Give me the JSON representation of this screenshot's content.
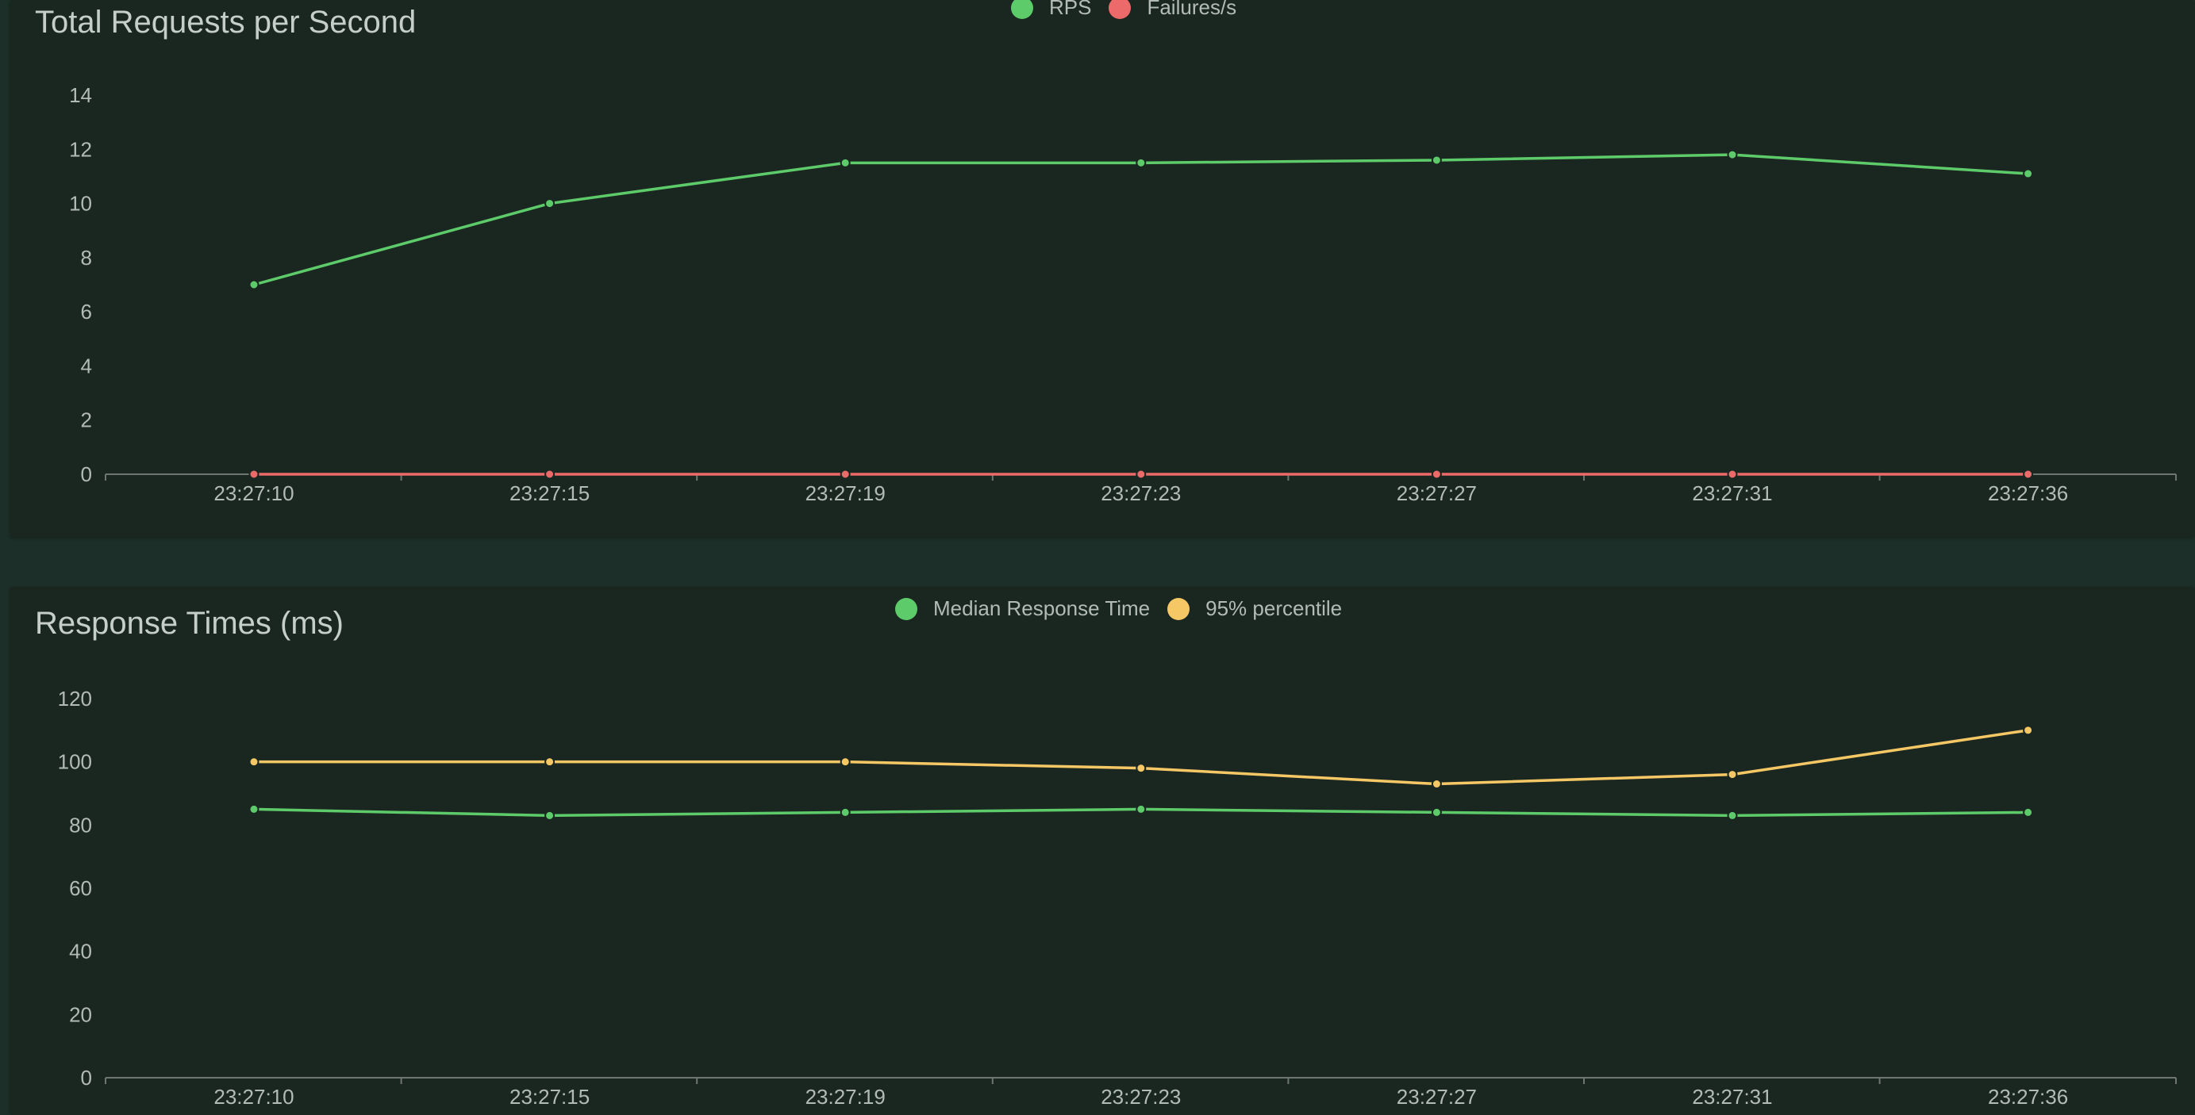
{
  "colors": {
    "green": "#5ecb6a",
    "red": "#ec6a6a",
    "yellow": "#f5c865",
    "axis": "#6e7672",
    "text": "#b3bbb6"
  },
  "chart_data": [
    {
      "type": "line",
      "title": "Total Requests per Second",
      "xlabel": "",
      "ylabel": "",
      "x": [
        "23:27:10",
        "23:27:15",
        "23:27:19",
        "23:27:23",
        "23:27:27",
        "23:27:31",
        "23:27:36"
      ],
      "y_ticks": [
        "0",
        "2",
        "4",
        "6",
        "8",
        "10",
        "12",
        "14"
      ],
      "ylim": [
        0,
        14
      ],
      "grid": false,
      "legend": "top-center",
      "series": [
        {
          "name": "RPS",
          "color": "#5ecb6a",
          "values": [
            7.0,
            10.0,
            11.5,
            11.5,
            11.6,
            11.8,
            11.1
          ]
        },
        {
          "name": "Failures/s",
          "color": "#ec6a6a",
          "values": [
            0,
            0,
            0,
            0,
            0,
            0,
            0
          ]
        }
      ]
    },
    {
      "type": "line",
      "title": "Response Times (ms)",
      "xlabel": "",
      "ylabel": "",
      "x": [
        "23:27:10",
        "23:27:15",
        "23:27:19",
        "23:27:23",
        "23:27:27",
        "23:27:31",
        "23:27:36"
      ],
      "y_ticks": [
        "0",
        "20",
        "40",
        "60",
        "80",
        "100",
        "120"
      ],
      "ylim": [
        0,
        120
      ],
      "grid": false,
      "legend": "top-center",
      "series": [
        {
          "name": "Median Response Time",
          "color": "#5ecb6a",
          "values": [
            85,
            83,
            84,
            85,
            84,
            83,
            84
          ]
        },
        {
          "name": "95% percentile",
          "color": "#f5c865",
          "values": [
            100,
            100,
            100,
            98,
            93,
            96,
            110
          ]
        }
      ]
    }
  ]
}
